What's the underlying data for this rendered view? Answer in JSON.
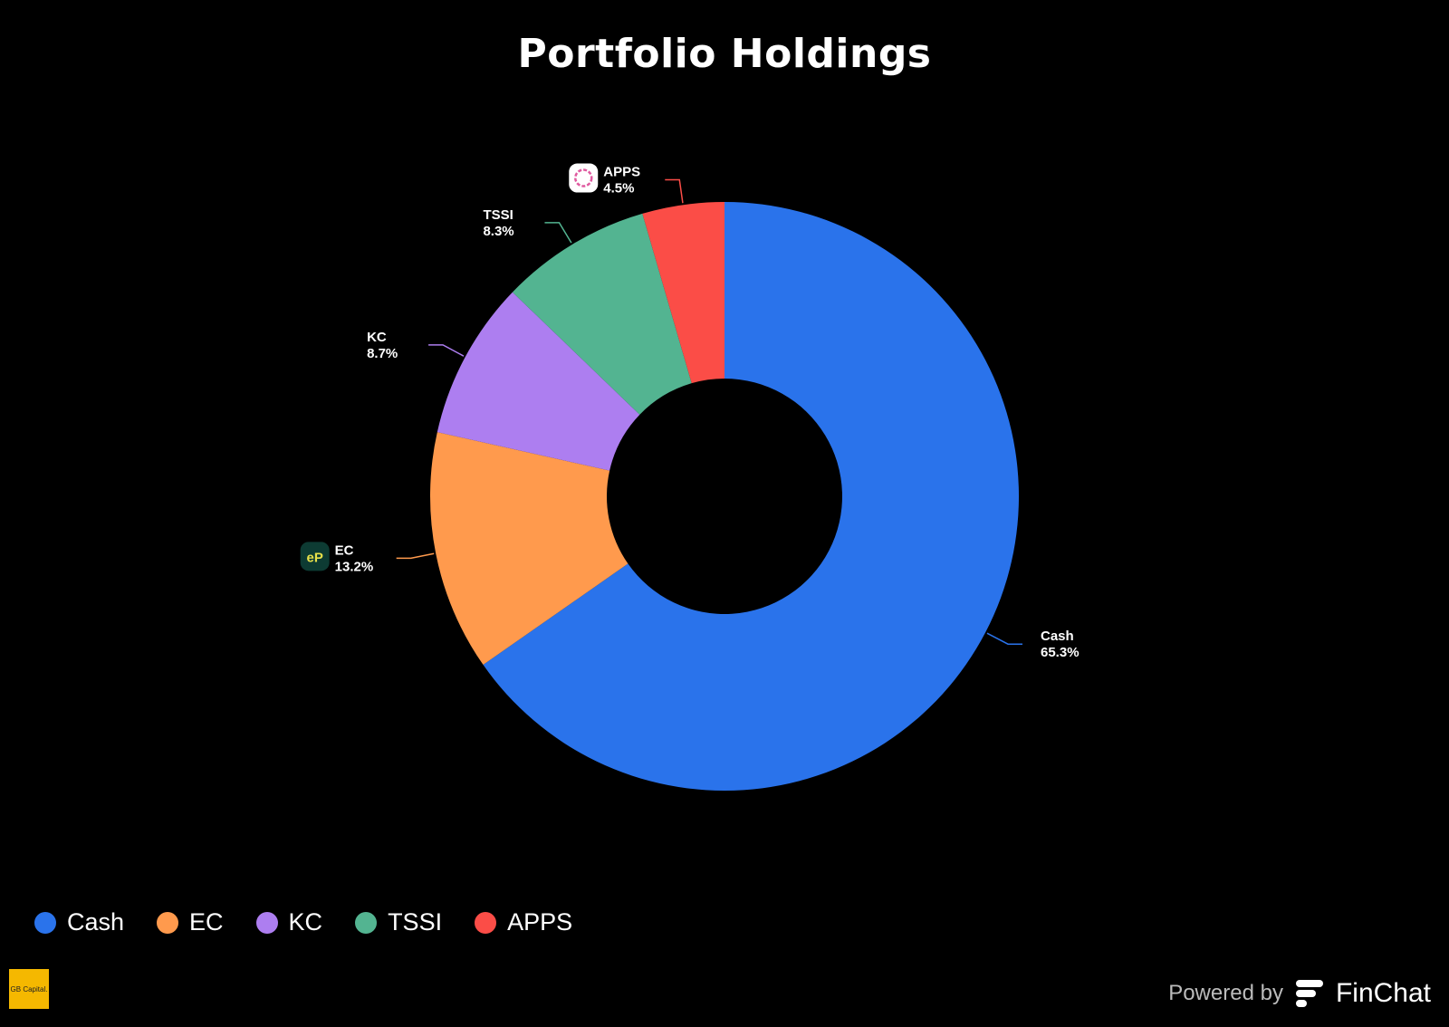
{
  "chart_data": {
    "type": "pie",
    "title": "Portfolio Holdings",
    "categories": [
      "Cash",
      "EC",
      "KC",
      "TSSI",
      "APPS"
    ],
    "values": [
      65.3,
      13.2,
      8.7,
      8.3,
      4.5
    ],
    "labels": [
      "65.3%",
      "13.2%",
      "8.7%",
      "8.3%",
      "4.5%"
    ],
    "colors": [
      "#2a73eb",
      "#ff9a4d",
      "#ad7ef0",
      "#53b491",
      "#fb4d47"
    ],
    "donut": true,
    "legend_position": "bottom-left"
  },
  "footer": {
    "brand_logo_text": "GB Capital.",
    "powered_by": "Powered by",
    "finchat_name": "FinChat"
  }
}
